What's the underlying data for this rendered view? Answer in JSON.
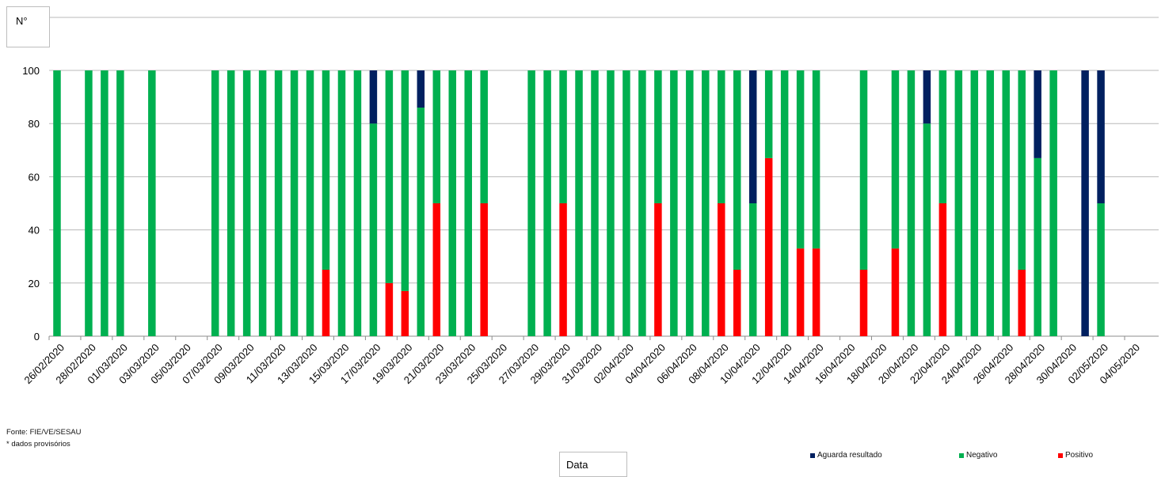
{
  "source_note": "Fonte: FIE/VE/SESAU",
  "provisional_note": "* dados provisórios",
  "chart_data": {
    "type": "bar",
    "stacked": true,
    "ylabel": "N°",
    "xlabel": "Data",
    "ylim": [
      0,
      100
    ],
    "yticks": [
      0,
      20,
      40,
      60,
      80,
      100
    ],
    "grid": true,
    "legend_position": "bottom-right",
    "x_tick_labels": [
      "26/02/2020",
      "28/02/2020",
      "01/03/2020",
      "03/03/2020",
      "05/03/2020",
      "07/03/2020",
      "09/03/2020",
      "11/03/2020",
      "13/03/2020",
      "15/03/2020",
      "17/03/2020",
      "19/03/2020",
      "21/03/2020",
      "23/03/2020",
      "25/03/2020",
      "27/03/2020",
      "29/03/2020",
      "31/03/2020",
      "02/04/2020",
      "04/04/2020",
      "06/04/2020",
      "08/04/2020",
      "10/04/2020",
      "12/04/2020",
      "14/04/2020",
      "16/04/2020",
      "18/04/2020",
      "20/04/2020",
      "22/04/2020",
      "24/04/2020",
      "26/04/2020",
      "28/04/2020",
      "30/04/2020",
      "02/05/2020",
      "04/05/2020"
    ],
    "categories": [
      "26/02/2020",
      "27/02/2020",
      "28/02/2020",
      "29/02/2020",
      "01/03/2020",
      "02/03/2020",
      "03/03/2020",
      "04/03/2020",
      "05/03/2020",
      "06/03/2020",
      "07/03/2020",
      "08/03/2020",
      "09/03/2020",
      "10/03/2020",
      "11/03/2020",
      "12/03/2020",
      "13/03/2020",
      "14/03/2020",
      "15/03/2020",
      "16/03/2020",
      "17/03/2020",
      "18/03/2020",
      "19/03/2020",
      "20/03/2020",
      "21/03/2020",
      "22/03/2020",
      "23/03/2020",
      "24/03/2020",
      "25/03/2020",
      "26/03/2020",
      "27/03/2020",
      "28/03/2020",
      "29/03/2020",
      "30/03/2020",
      "31/03/2020",
      "01/04/2020",
      "02/04/2020",
      "03/04/2020",
      "04/04/2020",
      "05/04/2020",
      "06/04/2020",
      "07/04/2020",
      "08/04/2020",
      "09/04/2020",
      "10/04/2020",
      "11/04/2020",
      "12/04/2020",
      "13/04/2020",
      "14/04/2020",
      "15/04/2020",
      "16/04/2020",
      "17/04/2020",
      "18/04/2020",
      "19/04/2020",
      "20/04/2020",
      "21/04/2020",
      "22/04/2020",
      "23/04/2020",
      "24/04/2020",
      "25/04/2020",
      "26/04/2020",
      "27/04/2020",
      "28/04/2020",
      "29/04/2020",
      "30/04/2020",
      "01/05/2020",
      "02/05/2020",
      "03/05/2020",
      "04/05/2020"
    ],
    "series": [
      {
        "name": "Positivo",
        "color": "#ff0000",
        "values": [
          0,
          0,
          0,
          0,
          0,
          0,
          0,
          0,
          0,
          0,
          0,
          0,
          0,
          0,
          0,
          0,
          0,
          25,
          0,
          0,
          0,
          20,
          17,
          0,
          50,
          0,
          0,
          50,
          0,
          0,
          0,
          0,
          50,
          0,
          0,
          0,
          0,
          0,
          50,
          0,
          0,
          0,
          50,
          25,
          0,
          67,
          0,
          33,
          33,
          0,
          0,
          25,
          0,
          33,
          0,
          0,
          50,
          0,
          0,
          0,
          0,
          25,
          0,
          0,
          0,
          0,
          0,
          0,
          0
        ]
      },
      {
        "name": "Negativo",
        "color": "#00b050",
        "values": [
          100,
          0,
          100,
          100,
          100,
          0,
          100,
          0,
          0,
          0,
          100,
          100,
          100,
          100,
          100,
          100,
          100,
          75,
          100,
          100,
          80,
          80,
          83,
          86,
          50,
          100,
          100,
          50,
          0,
          0,
          100,
          100,
          50,
          100,
          100,
          100,
          100,
          100,
          50,
          100,
          100,
          100,
          50,
          75,
          50,
          33,
          100,
          67,
          67,
          0,
          0,
          75,
          0,
          67,
          100,
          80,
          50,
          100,
          100,
          100,
          100,
          75,
          67,
          100,
          0,
          0,
          50,
          0,
          0
        ]
      },
      {
        "name": "Aguarda resultado",
        "color": "#002060",
        "values": [
          0,
          0,
          0,
          0,
          0,
          0,
          0,
          0,
          0,
          0,
          0,
          0,
          0,
          0,
          0,
          0,
          0,
          0,
          0,
          0,
          20,
          0,
          0,
          14,
          0,
          0,
          0,
          0,
          0,
          0,
          0,
          0,
          0,
          0,
          0,
          0,
          0,
          0,
          0,
          0,
          0,
          0,
          0,
          0,
          50,
          0,
          0,
          0,
          0,
          0,
          0,
          0,
          0,
          0,
          0,
          20,
          0,
          0,
          0,
          0,
          0,
          0,
          33,
          0,
          0,
          100,
          50,
          0,
          0
        ]
      }
    ],
    "legend": [
      {
        "label": "Aguarda resultado",
        "color": "#002060"
      },
      {
        "label": "Negativo",
        "color": "#00b050"
      },
      {
        "label": "Positivo",
        "color": "#ff0000"
      }
    ]
  }
}
